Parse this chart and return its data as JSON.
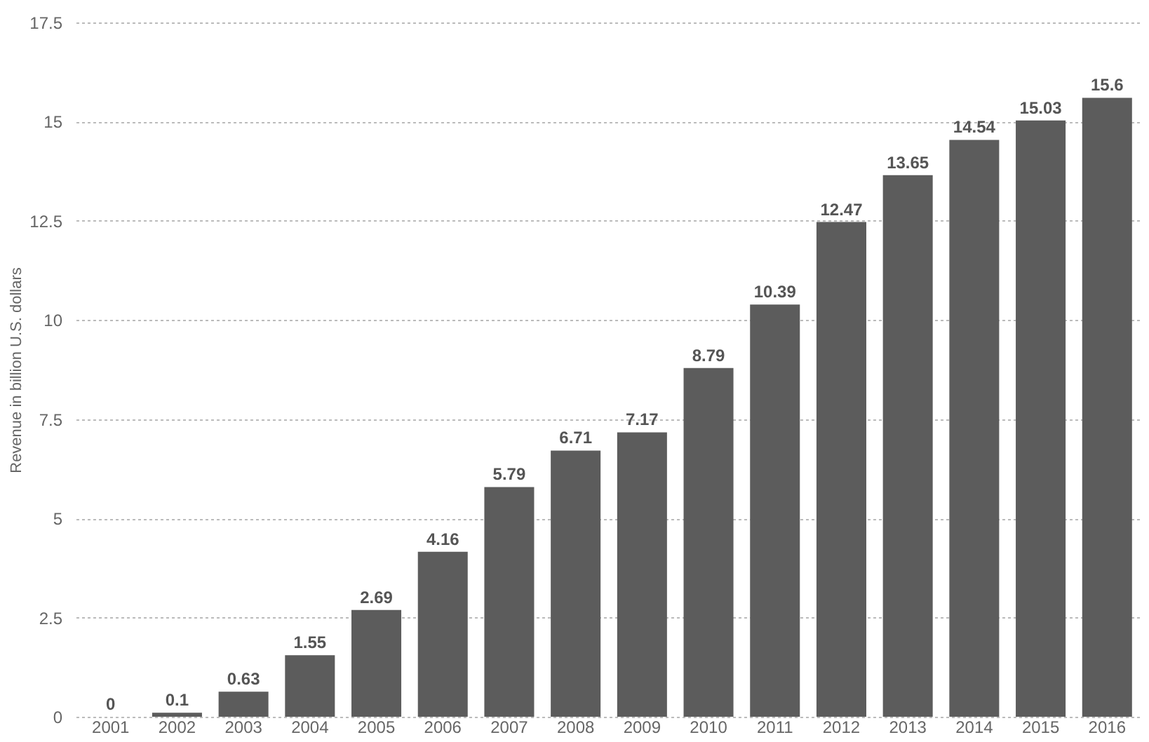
{
  "chart_data": {
    "type": "bar",
    "ylabel": "Revenue in billion U.S. dollars",
    "categories": [
      "2001",
      "2002",
      "2003",
      "2004",
      "2005",
      "2006",
      "2007",
      "2008",
      "2009",
      "2010",
      "2011",
      "2012",
      "2013",
      "2014",
      "2015",
      "2016"
    ],
    "values": [
      0,
      0.1,
      0.63,
      1.55,
      2.69,
      4.16,
      5.79,
      6.71,
      7.17,
      8.79,
      10.39,
      12.47,
      13.65,
      14.54,
      15.03,
      15.6
    ],
    "color": "#5c5c5c",
    "ylim": [
      0,
      17.5
    ],
    "yticks": [
      0,
      2.5,
      5,
      7.5,
      10,
      12.5,
      15,
      17.5
    ],
    "grid": "y",
    "data_labels": true
  }
}
